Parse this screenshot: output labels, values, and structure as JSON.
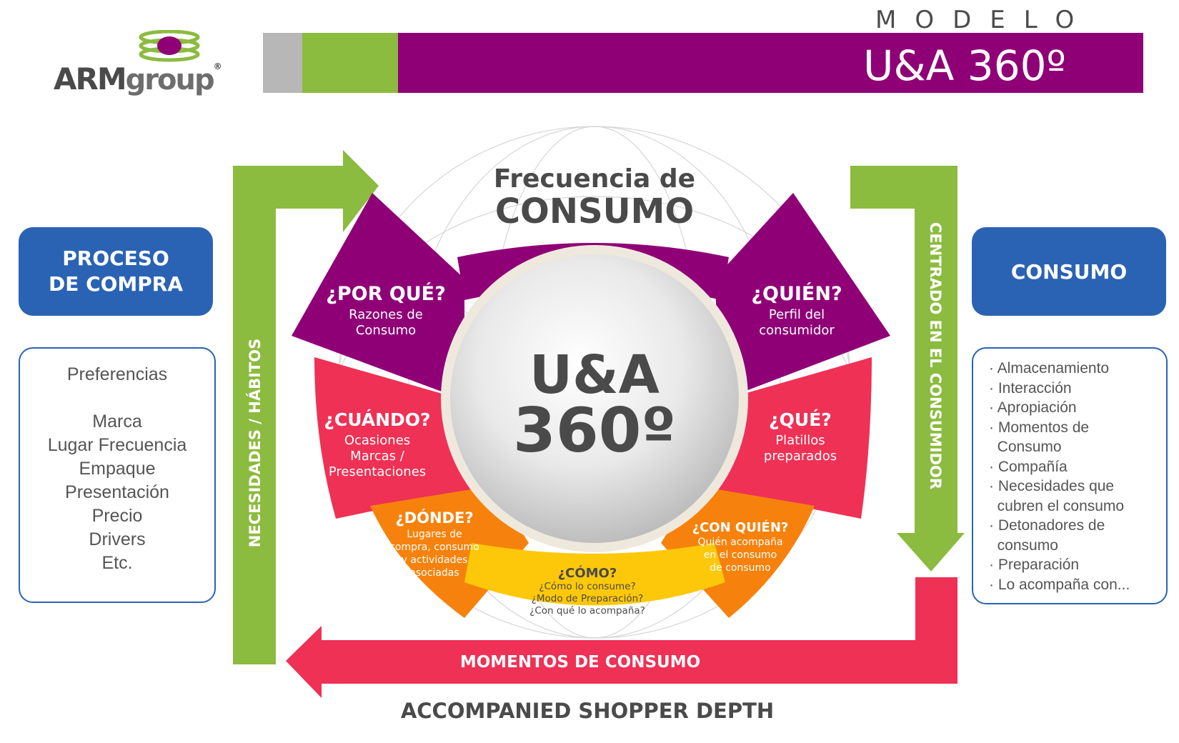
{
  "logo": {
    "bold": "ARM",
    "rest": "group",
    "mark": "®"
  },
  "header": {
    "model_label": "MODELO",
    "title": "U&A 360º"
  },
  "center": {
    "top_label_1": "Frecuencia de",
    "top_label_2": "CONSUMO",
    "sphere_1": "U&A",
    "sphere_2": "360º"
  },
  "segments": [
    {
      "title": "¿POR QUÉ?",
      "lines": [
        "Razones de",
        "Consumo"
      ]
    },
    {
      "title": "¿QUIÉN?",
      "lines": [
        "Perfil del",
        "consumidor"
      ]
    },
    {
      "title": "¿CUÁNDO?",
      "lines": [
        "Ocasiones",
        "Marcas /",
        "Presentaciones"
      ]
    },
    {
      "title": "¿QUÉ?",
      "lines": [
        "Platillos",
        "preparados"
      ]
    },
    {
      "title": "¿DÓNDE?",
      "lines": [
        "Lugares de",
        "compra, consumo",
        "y actividades",
        "asociadas"
      ]
    },
    {
      "title": "¿CON QUIÉN?",
      "lines": [
        "Quién acompaña",
        "en el consumo",
        "de consumo"
      ]
    },
    {
      "title": "¿CÓMO?",
      "lines": [
        "¿Cómo lo consume?",
        "¿Modo de Preparación?",
        "¿Con qué lo acompaña?"
      ]
    }
  ],
  "arrows": {
    "left": "NECESIDADES / HÁBITOS",
    "right": "CENTRADO EN EL CONSUMIDOR",
    "bottom": "MOMENTOS DE CONSUMO"
  },
  "footer": "ACCOMPANIED SHOPPER DEPTH",
  "left_panel": {
    "heading": "PROCESO DE COMPRA",
    "items": [
      "Preferencias",
      "",
      "Marca",
      "Lugar Frecuencia",
      "Empaque",
      "Presentación",
      "Precio",
      "Drivers",
      "Etc."
    ]
  },
  "right_panel": {
    "heading": "CONSUMO",
    "items": [
      "· Almacenamiento",
      "· Interacción",
      "· Apropiación",
      "· Momentos de",
      "  Consumo",
      "· Compañía",
      "· Necesidades que",
      "  cubren el consumo",
      "· Detonadores de",
      "  consumo",
      "· Preparación",
      "· Lo acompaña con..."
    ]
  },
  "colors": {
    "purple": "#8f0077",
    "green": "#8bbb3f",
    "gray": "#b7b7b7",
    "blue": "#2a63b4",
    "red": "#ee3155",
    "orange": "#f6820d",
    "yellow": "#fdc80a"
  }
}
